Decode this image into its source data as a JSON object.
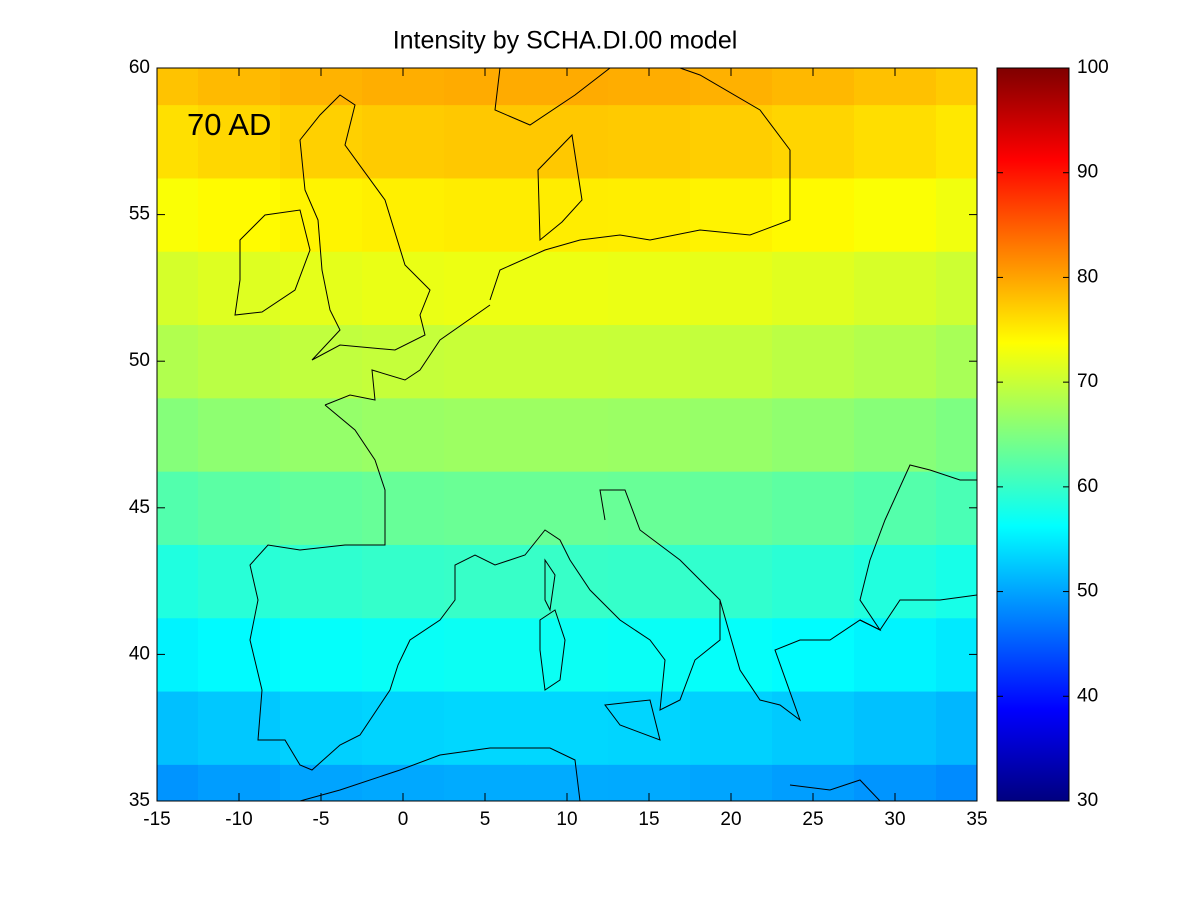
{
  "chart_data": {
    "type": "heatmap",
    "title": "Intensity by SCHA.DI.00 model",
    "annotation": "70 AD",
    "x": [
      -15,
      -10,
      -5,
      0,
      5,
      10,
      15,
      20,
      25,
      30,
      35
    ],
    "y": [
      35,
      37.5,
      40,
      42.5,
      45,
      47.5,
      50,
      52.5,
      55,
      57.5,
      60
    ],
    "values": [
      [
        48.9,
        49.5,
        50,
        50.3,
        50.5,
        50.5,
        50.4,
        50.1,
        49.6,
        49,
        48.3
      ],
      [
        51.9,
        52.5,
        53,
        53.3,
        53.5,
        53.5,
        53.4,
        53.1,
        52.6,
        52,
        51.3
      ],
      [
        55.4,
        56,
        56.5,
        56.8,
        57,
        57,
        56.9,
        56.6,
        56.1,
        55.5,
        54.8
      ],
      [
        58.4,
        59,
        59.5,
        59.8,
        60,
        60,
        59.9,
        59.6,
        59.1,
        58.5,
        57.8
      ],
      [
        61.9,
        62.5,
        63,
        63.3,
        63.5,
        63.5,
        63.4,
        63.1,
        62.6,
        62,
        61.3
      ],
      [
        65.4,
        66,
        66.5,
        66.8,
        67,
        67,
        66.9,
        66.6,
        66.1,
        65.5,
        64.8
      ],
      [
        68.4,
        69,
        69.5,
        69.8,
        70,
        70,
        69.9,
        69.6,
        69.1,
        68.5,
        67.8
      ],
      [
        70.9,
        71.5,
        72,
        72.3,
        72.5,
        72.5,
        72.4,
        72.1,
        71.6,
        71,
        70.3
      ],
      [
        73.4,
        74,
        74.5,
        74.8,
        75,
        75,
        74.9,
        74.6,
        74.1,
        73.5,
        72.8
      ],
      [
        75.9,
        76.5,
        77,
        77.3,
        77.5,
        77.5,
        77.4,
        77.1,
        76.6,
        76,
        75.3
      ],
      [
        77.9,
        78.5,
        79,
        79.3,
        79.5,
        79.5,
        79.4,
        79.1,
        78.6,
        78,
        77.3
      ]
    ],
    "xlim": [
      -15,
      35
    ],
    "xticks": [
      -15,
      -10,
      -5,
      0,
      5,
      10,
      15,
      20,
      25,
      30,
      35
    ],
    "ylim": [
      35,
      60
    ],
    "yticks": [
      35,
      40,
      45,
      50,
      55,
      60
    ],
    "clim": [
      30,
      100
    ],
    "cticks": [
      30,
      40,
      50,
      60,
      70,
      80,
      90,
      100
    ],
    "colormap": "jet"
  }
}
